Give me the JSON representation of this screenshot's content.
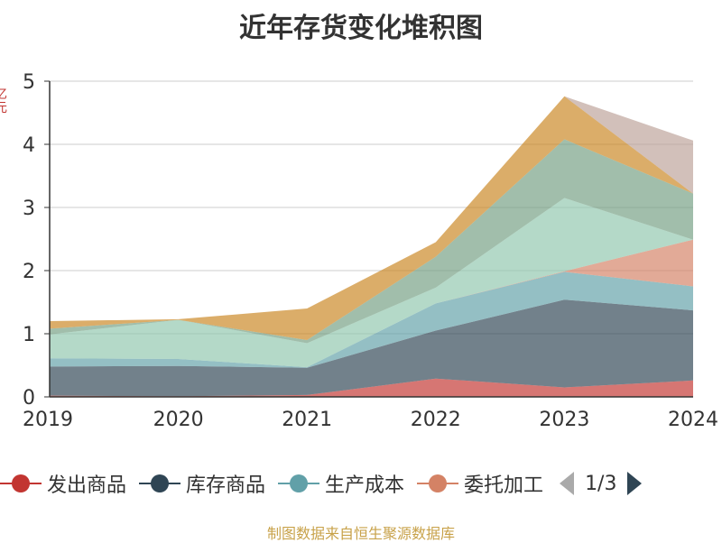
{
  "chart_data": {
    "type": "area",
    "stacked": true,
    "title": "近年存货变化堆积图",
    "ylabel": "亿元",
    "xlabel": "",
    "categories": [
      "2019",
      "2020",
      "2021",
      "2022",
      "2023",
      "2024"
    ],
    "ylim": [
      0,
      5
    ],
    "yticks": [
      0,
      1,
      2,
      3,
      4,
      5
    ],
    "grid": true,
    "legend_position": "bottom",
    "series": [
      {
        "name": "发出商品",
        "color": "#c23531",
        "values": [
          0.02,
          0.01,
          0.03,
          0.29,
          0.15,
          0.26
        ]
      },
      {
        "name": "库存商品",
        "color": "#2f4554",
        "values": [
          0.46,
          0.48,
          0.43,
          0.76,
          1.39,
          1.11
        ]
      },
      {
        "name": "生产成本",
        "color": "#61a0a8",
        "values": [
          0.13,
          0.11,
          0.01,
          0.43,
          0.44,
          0.38
        ]
      },
      {
        "name": "委托加工",
        "color": "#d48265",
        "values": [
          0.0,
          0.0,
          0.0,
          0.0,
          0.01,
          0.74
        ]
      },
      {
        "name": "",
        "color": "#91c7ae",
        "values": [
          0.38,
          0.62,
          0.38,
          0.25,
          1.16,
          0.0
        ]
      },
      {
        "name": "",
        "color": "#749f83",
        "values": [
          0.09,
          0.0,
          0.05,
          0.49,
          0.93,
          0.73
        ]
      },
      {
        "name": "",
        "color": "#ca8622",
        "values": [
          0.12,
          0.01,
          0.5,
          0.23,
          0.68,
          0.0
        ]
      },
      {
        "name": "",
        "color": "#bda29a",
        "values": [
          0.0,
          0.0,
          0.0,
          0.0,
          0.0,
          0.84
        ]
      }
    ]
  },
  "legend": {
    "items": [
      {
        "label": "发出商品",
        "color": "#c23531"
      },
      {
        "label": "库存商品",
        "color": "#2f4554"
      },
      {
        "label": "生产成本",
        "color": "#61a0a8"
      },
      {
        "label": "委托加工",
        "color": "#d48265"
      }
    ],
    "page_indicator": "1/3"
  },
  "source_text": "制图数据来自恒生聚源数据库"
}
